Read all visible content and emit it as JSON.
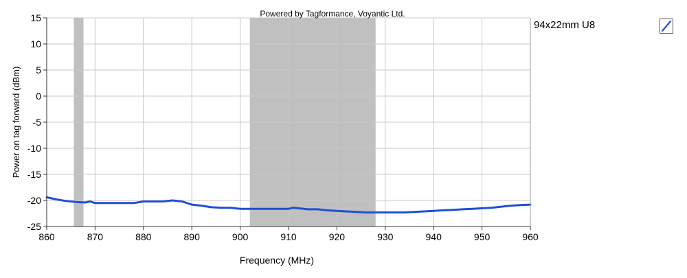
{
  "chart_data": {
    "type": "line",
    "title": "Powered by Tagformance, Voyantic Ltd.",
    "xlabel": "Frequency (MHz)",
    "ylabel": "Power on tag forward (dBm)",
    "xlim": [
      860,
      960
    ],
    "ylim": [
      -25,
      15
    ],
    "x_ticks": [
      "860",
      "870",
      "880",
      "890",
      "900",
      "910",
      "920",
      "930",
      "940",
      "950",
      "960"
    ],
    "y_ticks": [
      "15",
      "10",
      "5",
      "0",
      "-5",
      "-10",
      "-15",
      "-20",
      "-25"
    ],
    "grid": true,
    "legend_position": "top-right",
    "shaded_bands": [
      [
        865.6,
        867.6
      ],
      [
        902,
        928
      ]
    ],
    "colors": {
      "series": "#1f4fd6",
      "band": "#c0c0c0",
      "grid": "#c8c8c8"
    },
    "series": [
      {
        "name": "94x22mm U8",
        "x": [
          860,
          862,
          864,
          866,
          868,
          869,
          870,
          872,
          875,
          878,
          880,
          882,
          884,
          886,
          888,
          890,
          892,
          894,
          896,
          898,
          900,
          902,
          904,
          906,
          908,
          910,
          911,
          912,
          914,
          916,
          918,
          920,
          922,
          924,
          926,
          928,
          930,
          932,
          934,
          936,
          938,
          940,
          942,
          944,
          946,
          948,
          950,
          952,
          954,
          956,
          958,
          960
        ],
        "values": [
          -19.4,
          -19.8,
          -20.1,
          -20.3,
          -20.4,
          -20.2,
          -20.5,
          -20.5,
          -20.5,
          -20.5,
          -20.2,
          -20.2,
          -20.2,
          -20.0,
          -20.2,
          -20.8,
          -21.0,
          -21.3,
          -21.4,
          -21.4,
          -21.6,
          -21.6,
          -21.6,
          -21.6,
          -21.6,
          -21.6,
          -21.4,
          -21.5,
          -21.7,
          -21.7,
          -21.9,
          -22.0,
          -22.1,
          -22.2,
          -22.3,
          -22.3,
          -22.3,
          -22.3,
          -22.3,
          -22.2,
          -22.1,
          -22.0,
          -21.9,
          -21.8,
          -21.7,
          -21.6,
          -21.5,
          -21.4,
          -21.2,
          -21.0,
          -20.9,
          -20.8
        ]
      }
    ]
  }
}
